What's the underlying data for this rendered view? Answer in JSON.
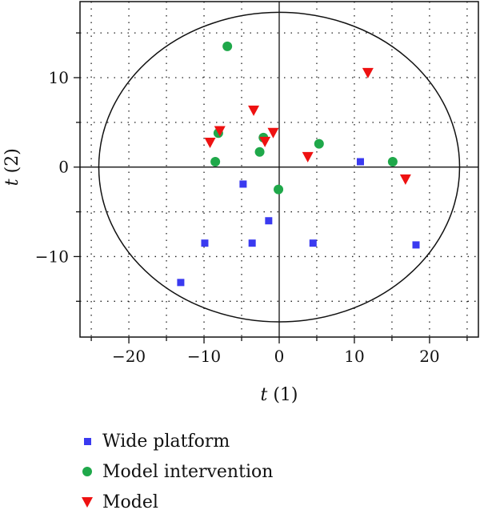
{
  "chart_data": {
    "type": "scatter",
    "xlabel": "t (1)",
    "ylabel": "t (2)",
    "xlim": [
      -26.5,
      26.5
    ],
    "ylim": [
      -19,
      18.5
    ],
    "xticks": [
      -20,
      -10,
      0,
      10,
      20
    ],
    "yticks": [
      -10,
      0,
      10
    ],
    "grid": "dotted",
    "ellipse": {
      "rx": 24,
      "ry": 17.3,
      "center": [
        0,
        0
      ]
    },
    "legend_position": "bottom-left",
    "series": [
      {
        "name": "Wide platform",
        "marker": "square",
        "color": "#3a3af0",
        "points": [
          [
            -13.1,
            -12.9
          ],
          [
            -9.9,
            -8.5
          ],
          [
            -4.8,
            -1.9
          ],
          [
            -3.6,
            -8.5
          ],
          [
            -1.4,
            -6.0
          ],
          [
            4.5,
            -8.5
          ],
          [
            10.8,
            0.6
          ],
          [
            18.2,
            -8.7
          ]
        ]
      },
      {
        "name": "Model intervention",
        "marker": "circle",
        "color": "#1fa84a",
        "points": [
          [
            -6.9,
            13.5
          ],
          [
            -8.1,
            3.8
          ],
          [
            -8.5,
            0.6
          ],
          [
            -2.1,
            3.3
          ],
          [
            -2.6,
            1.7
          ],
          [
            5.3,
            2.6
          ],
          [
            15.1,
            0.6
          ],
          [
            -0.1,
            -2.5
          ]
        ]
      },
      {
        "name": "Model",
        "marker": "triangle-down",
        "color": "#ee1111",
        "points": [
          [
            11.8,
            10.5
          ],
          [
            -3.4,
            6.3
          ],
          [
            -7.9,
            4.0
          ],
          [
            -9.2,
            2.7
          ],
          [
            -1.9,
            2.8
          ],
          [
            -0.8,
            3.8
          ],
          [
            3.8,
            1.1
          ],
          [
            16.8,
            -1.4
          ]
        ]
      }
    ]
  }
}
